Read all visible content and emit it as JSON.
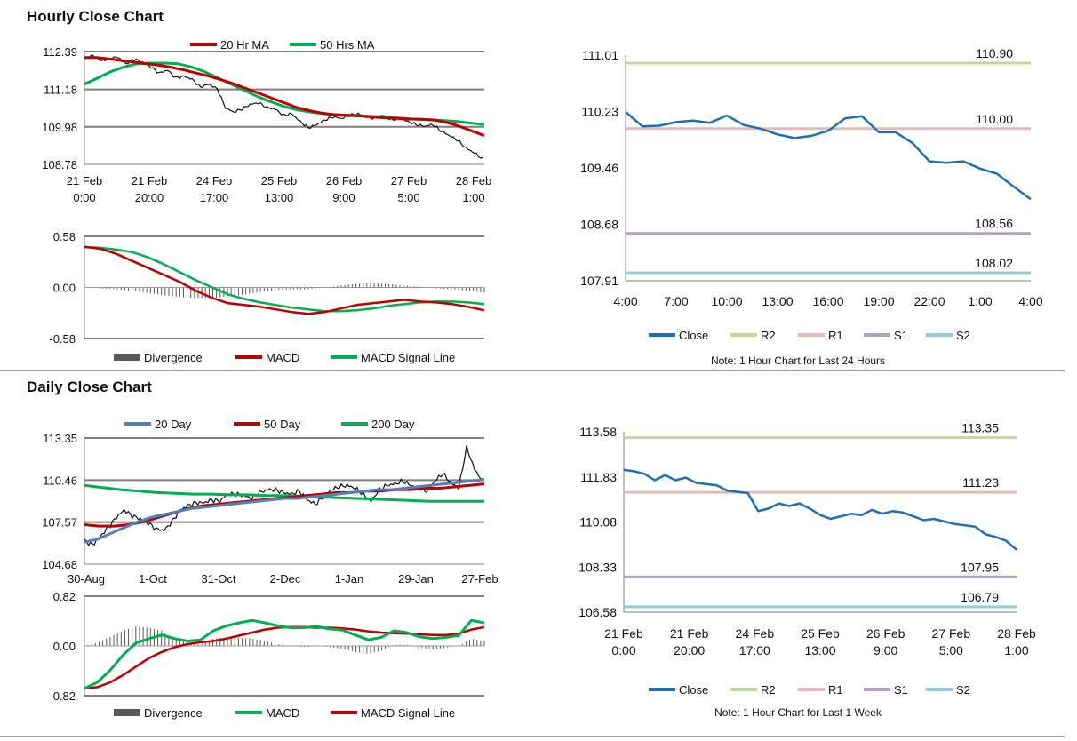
{
  "colors": {
    "ma20": "#c00000",
    "ma50": "#00b050",
    "ma200": "#00b050",
    "blue": "#4f81bd",
    "close": "#1f6fb2",
    "r2": "#c3d69b",
    "r1": "#e6b9b8",
    "s1": "#b3a2c7",
    "s2": "#93cddd",
    "div": "#595959",
    "grid": "#808080"
  },
  "sections": {
    "hourly_title": "Hourly Close Chart",
    "daily_title": "Daily Close Chart"
  },
  "chart_data": [
    {
      "id": "hourly_price",
      "type": "line",
      "title": "Hourly Close Chart",
      "legend": [
        "20 Hr MA",
        "50 Hrs MA"
      ],
      "y_ticks": [
        "112.39",
        "111.18",
        "109.98",
        "108.78"
      ],
      "ylim": [
        108.78,
        112.39
      ],
      "x_tick_labels": [
        [
          "21 Feb",
          "0:00"
        ],
        [
          "21 Feb",
          "20:00"
        ],
        [
          "24 Feb",
          "17:00"
        ],
        [
          "25 Feb",
          "13:00"
        ],
        [
          "26 Feb",
          "9:00"
        ],
        [
          "27 Feb",
          "5:00"
        ],
        [
          "28 Feb",
          "1:00"
        ]
      ],
      "close": [
        112.18,
        112.25,
        112.1,
        112.15,
        112.22,
        112.0,
        112.15,
        112.05,
        111.9,
        111.7,
        111.8,
        111.55,
        111.6,
        111.5,
        111.25,
        111.35,
        111.2,
        110.6,
        110.45,
        110.55,
        110.7,
        110.75,
        110.6,
        110.55,
        110.35,
        110.4,
        110.15,
        109.95,
        110.05,
        110.2,
        110.3,
        110.25,
        110.35,
        110.4,
        110.3,
        110.25,
        110.35,
        110.2,
        110.25,
        110.15,
        110.05,
        110.0,
        110.05,
        109.85,
        109.7,
        109.55,
        109.3,
        109.15,
        108.95
      ],
      "series": [
        {
          "name": "20 Hr MA",
          "values": [
            112.2,
            112.2,
            112.15,
            112.1,
            112.05,
            112.0,
            111.95,
            111.88,
            111.8,
            111.7,
            111.6,
            111.48,
            111.35,
            111.2,
            111.05,
            110.9,
            110.75,
            110.6,
            110.5,
            110.42,
            110.37,
            110.35,
            110.33,
            110.3,
            110.27,
            110.25,
            110.23,
            110.22,
            110.2,
            110.12,
            110.0,
            109.85,
            109.7
          ]
        },
        {
          "name": "50 Hrs MA",
          "values": [
            111.35,
            111.55,
            111.75,
            111.9,
            112.0,
            112.02,
            112.02,
            112.0,
            111.9,
            111.75,
            111.55,
            111.35,
            111.15,
            110.95,
            110.78,
            110.63,
            110.52,
            110.45,
            110.4,
            110.37,
            110.35,
            110.33,
            110.31,
            110.28,
            110.25,
            110.22,
            110.2,
            110.18,
            110.15,
            110.1,
            110.05
          ]
        }
      ]
    },
    {
      "id": "hourly_macd",
      "type": "line",
      "legend": [
        "Divergence",
        "MACD",
        "MACD Signal Line"
      ],
      "y_ticks": [
        "0.58",
        "0.00",
        "-0.58"
      ],
      "ylim": [
        -0.58,
        0.58
      ],
      "series": [
        {
          "name": "MACD",
          "values": [
            0.46,
            0.44,
            0.38,
            0.3,
            0.22,
            0.14,
            0.06,
            -0.04,
            -0.12,
            -0.18,
            -0.2,
            -0.22,
            -0.25,
            -0.28,
            -0.3,
            -0.28,
            -0.24,
            -0.2,
            -0.18,
            -0.16,
            -0.14,
            -0.16,
            -0.17,
            -0.19,
            -0.22,
            -0.26
          ]
        },
        {
          "name": "MACD Signal Line",
          "values": [
            0.46,
            0.45,
            0.43,
            0.4,
            0.34,
            0.26,
            0.17,
            0.08,
            0.0,
            -0.08,
            -0.13,
            -0.17,
            -0.2,
            -0.23,
            -0.25,
            -0.27,
            -0.27,
            -0.26,
            -0.24,
            -0.21,
            -0.19,
            -0.17,
            -0.16,
            -0.16,
            -0.17,
            -0.19
          ]
        },
        {
          "name": "Divergence",
          "values": [
            0.0,
            -0.01,
            -0.02,
            -0.04,
            -0.06,
            -0.09,
            -0.11,
            -0.12,
            -0.12,
            -0.1,
            -0.08,
            -0.05,
            -0.03,
            -0.02,
            -0.02,
            0.0,
            0.02,
            0.04,
            0.05,
            0.04,
            0.02,
            0.01,
            -0.01,
            -0.02,
            -0.04,
            -0.06
          ]
        }
      ]
    },
    {
      "id": "hourly_24h",
      "type": "line",
      "note": "Note: 1 Hour Chart for Last 24 Hours",
      "y_ticks": [
        "111.01",
        "110.23",
        "109.46",
        "108.68",
        "107.91"
      ],
      "ylim": [
        107.91,
        111.01
      ],
      "x_tick_labels": [
        "4:00",
        "7:00",
        "10:00",
        "13:00",
        "16:00",
        "19:00",
        "22:00",
        "1:00",
        "4:00"
      ],
      "close": [
        110.23,
        110.03,
        110.04,
        110.09,
        110.11,
        110.08,
        110.18,
        110.05,
        110.0,
        109.92,
        109.87,
        109.9,
        109.97,
        110.14,
        110.17,
        109.95,
        109.95,
        109.8,
        109.55,
        109.53,
        109.55,
        109.45,
        109.38,
        109.2,
        109.03
      ],
      "levels": [
        {
          "name": "R2",
          "value": 110.9,
          "label": "110.90"
        },
        {
          "name": "R1",
          "value": 110.0,
          "label": "110.00"
        },
        {
          "name": "S1",
          "value": 108.56,
          "label": "108.56"
        },
        {
          "name": "S2",
          "value": 108.02,
          "label": "108.02"
        }
      ],
      "legend": [
        "Close",
        "R2",
        "R1",
        "S1",
        "S2"
      ]
    },
    {
      "id": "daily_price",
      "type": "line",
      "title": "Daily Close Chart",
      "legend": [
        "20 Day",
        "50 Day",
        "200 Day"
      ],
      "y_ticks": [
        "113.35",
        "110.46",
        "107.57",
        "104.68"
      ],
      "ylim": [
        104.68,
        113.35
      ],
      "x_tick_labels": [
        "30-Aug",
        "1-Oct",
        "31-Oct",
        "2-Dec",
        "1-Jan",
        "29-Jan",
        "27-Feb"
      ],
      "close": [
        106.3,
        106.0,
        106.6,
        107.2,
        107.9,
        108.4,
        108.0,
        107.8,
        107.5,
        107.1,
        107.0,
        107.6,
        108.4,
        108.7,
        108.9,
        108.9,
        109.1,
        109.0,
        109.5,
        109.5,
        109.4,
        109.2,
        109.6,
        109.8,
        109.8,
        109.6,
        109.5,
        109.7,
        109.1,
        108.8,
        109.3,
        109.8,
        110.0,
        110.1,
        109.9,
        109.5,
        109.0,
        109.8,
        110.1,
        110.2,
        110.4,
        110.1,
        109.9,
        109.7,
        110.4,
        110.9,
        110.3,
        109.9,
        112.7,
        111.2,
        110.4
      ],
      "series": [
        {
          "name": "20 Day",
          "values": [
            106.2,
            106.4,
            106.8,
            107.2,
            107.6,
            107.9,
            108.1,
            108.3,
            108.5,
            108.6,
            108.7,
            108.8,
            108.9,
            109.0,
            109.1,
            109.2,
            109.2,
            109.3,
            109.4,
            109.5,
            109.6,
            109.7,
            109.8,
            109.8,
            109.9,
            110.0,
            110.1,
            110.2,
            110.3,
            110.4,
            110.5
          ]
        },
        {
          "name": "50 Day",
          "values": [
            107.4,
            107.3,
            107.3,
            107.4,
            107.6,
            107.9,
            108.2,
            108.5,
            108.7,
            108.8,
            108.9,
            109.0,
            109.1,
            109.2,
            109.3,
            109.4,
            109.5,
            109.6,
            109.6,
            109.7,
            109.7,
            109.8,
            109.8,
            109.9,
            109.9,
            110.0,
            110.1,
            110.2
          ]
        },
        {
          "name": "200 Day",
          "values": [
            110.1,
            109.95,
            109.8,
            109.7,
            109.6,
            109.55,
            109.5,
            109.5,
            109.45,
            109.45,
            109.4,
            109.4,
            109.35,
            109.3,
            109.25,
            109.2,
            109.15,
            109.1,
            109.05,
            109.0,
            109.0,
            109.0,
            109.0
          ]
        }
      ]
    },
    {
      "id": "daily_macd",
      "type": "line",
      "legend": [
        "Divergence",
        "MACD",
        "MACD Signal Line"
      ],
      "y_ticks": [
        "0.82",
        "0.00",
        "-0.82"
      ],
      "ylim": [
        -0.82,
        0.82
      ],
      "series": [
        {
          "name": "MACD",
          "values": [
            -0.7,
            -0.6,
            -0.4,
            -0.15,
            0.05,
            0.12,
            0.18,
            0.12,
            0.08,
            0.1,
            0.25,
            0.33,
            0.38,
            0.42,
            0.38,
            0.33,
            0.3,
            0.3,
            0.32,
            0.28,
            0.26,
            0.18,
            0.1,
            0.14,
            0.25,
            0.22,
            0.15,
            0.12,
            0.14,
            0.17,
            0.42,
            0.38
          ]
        },
        {
          "name": "MACD Signal Line",
          "values": [
            -0.7,
            -0.68,
            -0.6,
            -0.48,
            -0.34,
            -0.2,
            -0.1,
            -0.02,
            0.03,
            0.06,
            0.08,
            0.12,
            0.17,
            0.22,
            0.27,
            0.3,
            0.31,
            0.31,
            0.3,
            0.3,
            0.29,
            0.27,
            0.24,
            0.22,
            0.21,
            0.2,
            0.19,
            0.18,
            0.18,
            0.2,
            0.27,
            0.31
          ]
        },
        {
          "name": "Divergence",
          "values": [
            0.0,
            0.05,
            0.15,
            0.25,
            0.32,
            0.3,
            0.25,
            0.12,
            0.05,
            0.02,
            0.12,
            0.14,
            0.13,
            0.12,
            0.08,
            0.03,
            0.0,
            -0.02,
            0.0,
            -0.02,
            -0.05,
            -0.1,
            -0.13,
            -0.08,
            0.02,
            0.02,
            -0.03,
            -0.06,
            -0.03,
            0.0,
            0.12,
            0.08
          ]
        }
      ]
    },
    {
      "id": "daily_week",
      "type": "line",
      "note": "Note: 1 Hour Chart for Last 1 Week",
      "y_ticks": [
        "113.58",
        "111.83",
        "110.08",
        "108.33",
        "106.58"
      ],
      "ylim": [
        106.58,
        113.58
      ],
      "x_tick_labels": [
        [
          "21 Feb",
          "0:00"
        ],
        [
          "21 Feb",
          "20:00"
        ],
        [
          "24 Feb",
          "17:00"
        ],
        [
          "25 Feb",
          "13:00"
        ],
        [
          "26 Feb",
          "9:00"
        ],
        [
          "27 Feb",
          "5:00"
        ],
        [
          "28 Feb",
          "1:00"
        ]
      ],
      "close": [
        112.1,
        112.05,
        111.95,
        111.7,
        111.9,
        111.7,
        111.8,
        111.6,
        111.55,
        111.5,
        111.3,
        111.25,
        111.2,
        110.5,
        110.6,
        110.8,
        110.7,
        110.8,
        110.6,
        110.35,
        110.2,
        110.3,
        110.4,
        110.35,
        110.55,
        110.4,
        110.5,
        110.45,
        110.3,
        110.15,
        110.2,
        110.1,
        110.0,
        109.95,
        109.9,
        109.6,
        109.5,
        109.35,
        109.0
      ],
      "levels": [
        {
          "name": "R2",
          "value": 113.35,
          "label": "113.35"
        },
        {
          "name": "R1",
          "value": 111.23,
          "label": "111.23"
        },
        {
          "name": "S1",
          "value": 107.95,
          "label": "107.95"
        },
        {
          "name": "S2",
          "value": 106.79,
          "label": "106.79"
        }
      ],
      "legend": [
        "Close",
        "R2",
        "R1",
        "S1",
        "S2"
      ]
    }
  ]
}
